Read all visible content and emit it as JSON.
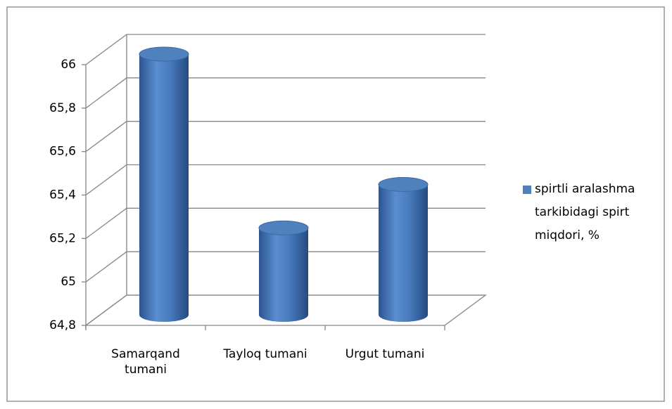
{
  "chart_data": {
    "type": "bar",
    "categories": [
      "Samarqand tumani",
      "Tayloq tumani",
      "Urgut tumani"
    ],
    "series": [
      {
        "name": "spirtli aralashma tarkibidagi spirt miqdori, %",
        "color": "#4f81bd",
        "values": [
          66,
          65.2,
          65.4
        ]
      }
    ],
    "ylim": [
      64.8,
      66
    ],
    "yticks": [
      {
        "value": 64.8,
        "label": "64,8"
      },
      65,
      {
        "value": 65.2,
        "label": "65,2"
      },
      {
        "value": 65.4,
        "label": "65,4"
      },
      {
        "value": 65.6,
        "label": "65,6"
      },
      {
        "value": 65.8,
        "label": "65,8"
      },
      66
    ],
    "grid": true,
    "legend": "right"
  }
}
